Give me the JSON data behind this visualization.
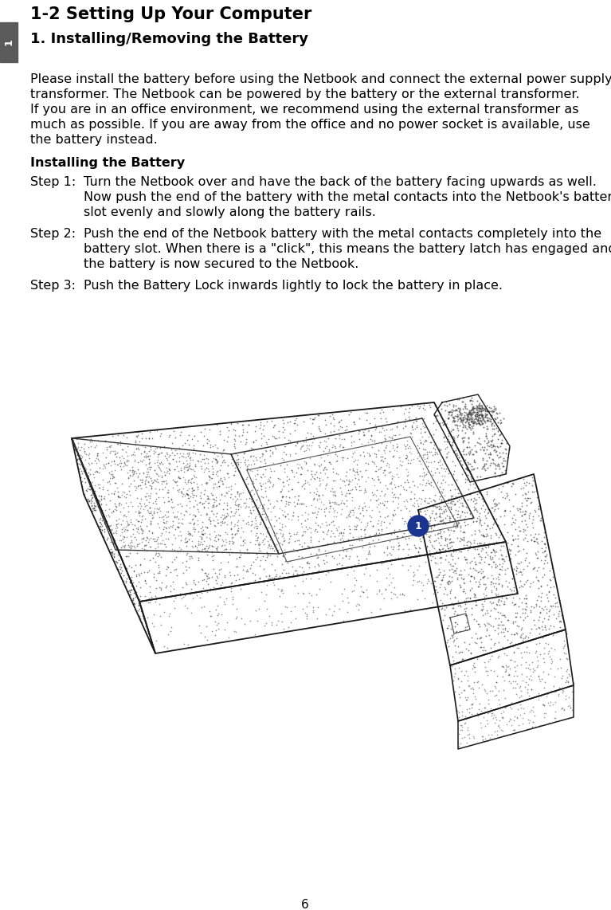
{
  "title": "1-2 Setting Up Your Computer",
  "section_heading": "1. Installing/Removing the Battery",
  "sidebar_color": "#5a5a5a",
  "sidebar_label": "1",
  "para1_line1": "Please install the battery before using the Netbook and connect the external power supply",
  "para1_line2": "transformer. The Netbook can be powered by the battery or the external transformer.",
  "para1_line3": "If you are in an office environment, we recommend using the external transformer as",
  "para1_line4": "much as possible. If you are away from the office and no power socket is available, use",
  "para1_line5": "the battery instead.",
  "subheading": "Installing the Battery",
  "step1_label": "Step 1:",
  "step1_line1": "Turn the Netbook over and have the back of the battery facing upwards as well.",
  "step1_line2": "Now push the end of the battery with the metal contacts into the Netbook's battery",
  "step1_line3": "slot evenly and slowly along the battery rails.",
  "step2_label": "Step 2:",
  "step2_line1": "Push the end of the Netbook battery with the metal contacts completely into the",
  "step2_line2": "battery slot. When there is a \"click\", this means the battery latch has engaged and",
  "step2_line3": "the battery is now secured to the Netbook.",
  "step3_label": "Step 3:",
  "step3_line1": "Push the Battery Lock inwards lightly to lock the battery in place.",
  "page_number": "6",
  "bg_color": "#ffffff",
  "text_color": "#000000",
  "title_fontsize": 15,
  "heading_fontsize": 13,
  "body_fontsize": 11.5,
  "subheading_fontsize": 11.5,
  "circle_color": "#1a3590",
  "circle_label_color": "#ffffff"
}
